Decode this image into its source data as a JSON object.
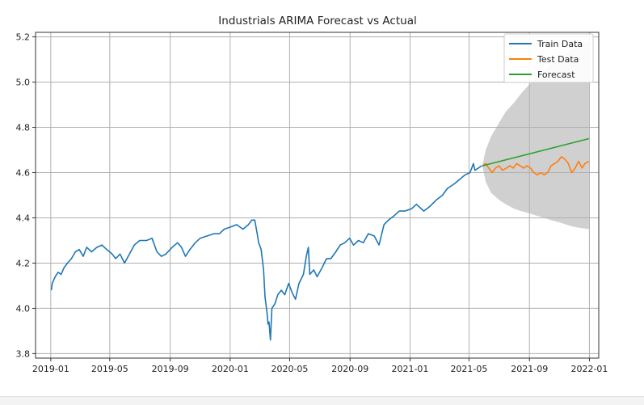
{
  "chart_data": {
    "type": "line",
    "title": "Industrials ARIMA Forecast vs Actual",
    "xlabel": "",
    "ylabel": "",
    "x_range": [
      "2018-12-01",
      "2022-01-20"
    ],
    "ylim": [
      3.78,
      5.22
    ],
    "x_ticks": [
      "2019-01",
      "2019-05",
      "2019-09",
      "2020-01",
      "2020-05",
      "2020-09",
      "2021-01",
      "2021-05",
      "2021-09",
      "2022-01"
    ],
    "y_ticks": [
      3.8,
      4.0,
      4.2,
      4.4,
      4.6,
      4.8,
      5.0,
      5.2
    ],
    "grid": true,
    "legend_position": "top-right",
    "series": [
      {
        "name": "Train Data",
        "color": "#1f77b4",
        "points": [
          [
            "2019-01-02",
            4.08
          ],
          [
            "2019-01-04",
            4.11
          ],
          [
            "2019-01-10",
            4.14
          ],
          [
            "2019-01-16",
            4.16
          ],
          [
            "2019-01-22",
            4.15
          ],
          [
            "2019-01-28",
            4.18
          ],
          [
            "2019-02-04",
            4.2
          ],
          [
            "2019-02-12",
            4.22
          ],
          [
            "2019-02-20",
            4.25
          ],
          [
            "2019-02-28",
            4.26
          ],
          [
            "2019-03-08",
            4.23
          ],
          [
            "2019-03-15",
            4.27
          ],
          [
            "2019-03-25",
            4.25
          ],
          [
            "2019-04-05",
            4.27
          ],
          [
            "2019-04-15",
            4.28
          ],
          [
            "2019-04-25",
            4.26
          ],
          [
            "2019-05-06",
            4.24
          ],
          [
            "2019-05-13",
            4.22
          ],
          [
            "2019-05-22",
            4.24
          ],
          [
            "2019-05-31",
            4.2
          ],
          [
            "2019-06-10",
            4.24
          ],
          [
            "2019-06-20",
            4.28
          ],
          [
            "2019-07-01",
            4.3
          ],
          [
            "2019-07-15",
            4.3
          ],
          [
            "2019-07-26",
            4.31
          ],
          [
            "2019-08-05",
            4.25
          ],
          [
            "2019-08-14",
            4.23
          ],
          [
            "2019-08-23",
            4.24
          ],
          [
            "2019-09-05",
            4.27
          ],
          [
            "2019-09-16",
            4.29
          ],
          [
            "2019-09-24",
            4.27
          ],
          [
            "2019-10-02",
            4.23
          ],
          [
            "2019-10-11",
            4.26
          ],
          [
            "2019-10-22",
            4.29
          ],
          [
            "2019-11-01",
            4.31
          ],
          [
            "2019-11-15",
            4.32
          ],
          [
            "2019-11-29",
            4.33
          ],
          [
            "2019-12-10",
            4.33
          ],
          [
            "2019-12-20",
            4.35
          ],
          [
            "2020-01-02",
            4.36
          ],
          [
            "2020-01-14",
            4.37
          ],
          [
            "2020-01-27",
            4.35
          ],
          [
            "2020-02-07",
            4.37
          ],
          [
            "2020-02-14",
            4.39
          ],
          [
            "2020-02-20",
            4.39
          ],
          [
            "2020-02-25",
            4.33
          ],
          [
            "2020-02-28",
            4.29
          ],
          [
            "2020-03-04",
            4.26
          ],
          [
            "2020-03-09",
            4.17
          ],
          [
            "2020-03-12",
            4.05
          ],
          [
            "2020-03-16",
            3.98
          ],
          [
            "2020-03-18",
            3.93
          ],
          [
            "2020-03-20",
            3.94
          ],
          [
            "2020-03-23",
            3.86
          ],
          [
            "2020-03-26",
            4.0
          ],
          [
            "2020-04-01",
            4.02
          ],
          [
            "2020-04-07",
            4.06
          ],
          [
            "2020-04-14",
            4.08
          ],
          [
            "2020-04-21",
            4.06
          ],
          [
            "2020-04-29",
            4.11
          ],
          [
            "2020-05-06",
            4.07
          ],
          [
            "2020-05-13",
            4.04
          ],
          [
            "2020-05-20",
            4.11
          ],
          [
            "2020-05-29",
            4.15
          ],
          [
            "2020-06-04",
            4.23
          ],
          [
            "2020-06-08",
            4.27
          ],
          [
            "2020-06-11",
            4.15
          ],
          [
            "2020-06-19",
            4.17
          ],
          [
            "2020-06-26",
            4.14
          ],
          [
            "2020-07-06",
            4.18
          ],
          [
            "2020-07-15",
            4.22
          ],
          [
            "2020-07-24",
            4.22
          ],
          [
            "2020-08-03",
            4.25
          ],
          [
            "2020-08-12",
            4.28
          ],
          [
            "2020-08-21",
            4.29
          ],
          [
            "2020-08-31",
            4.31
          ],
          [
            "2020-09-08",
            4.28
          ],
          [
            "2020-09-18",
            4.3
          ],
          [
            "2020-09-28",
            4.29
          ],
          [
            "2020-10-08",
            4.33
          ],
          [
            "2020-10-20",
            4.32
          ],
          [
            "2020-10-30",
            4.28
          ],
          [
            "2020-11-09",
            4.37
          ],
          [
            "2020-11-18",
            4.39
          ],
          [
            "2020-11-30",
            4.41
          ],
          [
            "2020-12-10",
            4.43
          ],
          [
            "2020-12-21",
            4.43
          ],
          [
            "2021-01-04",
            4.44
          ],
          [
            "2021-01-14",
            4.46
          ],
          [
            "2021-01-29",
            4.43
          ],
          [
            "2021-02-10",
            4.45
          ],
          [
            "2021-02-24",
            4.48
          ],
          [
            "2021-03-08",
            4.5
          ],
          [
            "2021-03-18",
            4.53
          ],
          [
            "2021-04-01",
            4.55
          ],
          [
            "2021-04-12",
            4.57
          ],
          [
            "2021-04-23",
            4.59
          ],
          [
            "2021-05-03",
            4.6
          ],
          [
            "2021-05-10",
            4.64
          ],
          [
            "2021-05-13",
            4.61
          ],
          [
            "2021-05-20",
            4.62
          ],
          [
            "2021-05-27",
            4.63
          ]
        ]
      },
      {
        "name": "Test Data",
        "color": "#ff7f0e",
        "points": [
          [
            "2021-05-28",
            4.63
          ],
          [
            "2021-06-04",
            4.64
          ],
          [
            "2021-06-10",
            4.62
          ],
          [
            "2021-06-17",
            4.6
          ],
          [
            "2021-06-24",
            4.62
          ],
          [
            "2021-07-01",
            4.63
          ],
          [
            "2021-07-08",
            4.61
          ],
          [
            "2021-07-16",
            4.62
          ],
          [
            "2021-07-23",
            4.63
          ],
          [
            "2021-07-30",
            4.62
          ],
          [
            "2021-08-06",
            4.64
          ],
          [
            "2021-08-13",
            4.63
          ],
          [
            "2021-08-20",
            4.62
          ],
          [
            "2021-08-27",
            4.63
          ],
          [
            "2021-09-03",
            4.62
          ],
          [
            "2021-09-10",
            4.6
          ],
          [
            "2021-09-17",
            4.59
          ],
          [
            "2021-09-24",
            4.6
          ],
          [
            "2021-10-01",
            4.59
          ],
          [
            "2021-10-08",
            4.6
          ],
          [
            "2021-10-15",
            4.63
          ],
          [
            "2021-10-22",
            4.64
          ],
          [
            "2021-10-29",
            4.65
          ],
          [
            "2021-11-05",
            4.67
          ],
          [
            "2021-11-12",
            4.66
          ],
          [
            "2021-11-19",
            4.64
          ],
          [
            "2021-11-26",
            4.6
          ],
          [
            "2021-12-03",
            4.62
          ],
          [
            "2021-12-10",
            4.65
          ],
          [
            "2021-12-17",
            4.62
          ],
          [
            "2021-12-23",
            4.64
          ],
          [
            "2021-12-31",
            4.65
          ]
        ]
      },
      {
        "name": "Forecast",
        "color": "#2ca02c",
        "points": [
          [
            "2021-05-28",
            4.63
          ],
          [
            "2021-12-31",
            4.75
          ]
        ]
      }
    ],
    "confidence_interval": {
      "color": "#d0d0d0",
      "upper": [
        [
          "2021-05-28",
          4.63
        ],
        [
          "2021-06-04",
          4.7
        ],
        [
          "2021-06-15",
          4.76
        ],
        [
          "2021-07-01",
          4.82
        ],
        [
          "2021-07-15",
          4.87
        ],
        [
          "2021-08-01",
          4.91
        ],
        [
          "2021-08-15",
          4.95
        ],
        [
          "2021-09-01",
          4.99
        ],
        [
          "2021-09-15",
          5.02
        ],
        [
          "2021-10-01",
          5.05
        ],
        [
          "2021-10-15",
          5.08
        ],
        [
          "2021-11-01",
          5.11
        ],
        [
          "2021-11-15",
          5.13
        ],
        [
          "2021-12-01",
          5.15
        ],
        [
          "2021-12-15",
          5.17
        ],
        [
          "2021-12-31",
          5.18
        ]
      ],
      "lower": [
        [
          "2021-05-28",
          4.63
        ],
        [
          "2021-06-04",
          4.56
        ],
        [
          "2021-06-15",
          4.51
        ],
        [
          "2021-07-01",
          4.48
        ],
        [
          "2021-07-15",
          4.46
        ],
        [
          "2021-08-01",
          4.44
        ],
        [
          "2021-08-15",
          4.43
        ],
        [
          "2021-09-01",
          4.42
        ],
        [
          "2021-09-15",
          4.41
        ],
        [
          "2021-10-01",
          4.4
        ],
        [
          "2021-10-15",
          4.39
        ],
        [
          "2021-11-01",
          4.38
        ],
        [
          "2021-11-15",
          4.37
        ],
        [
          "2021-12-01",
          4.36
        ],
        [
          "2021-12-15",
          4.355
        ],
        [
          "2021-12-31",
          4.35
        ]
      ]
    }
  }
}
